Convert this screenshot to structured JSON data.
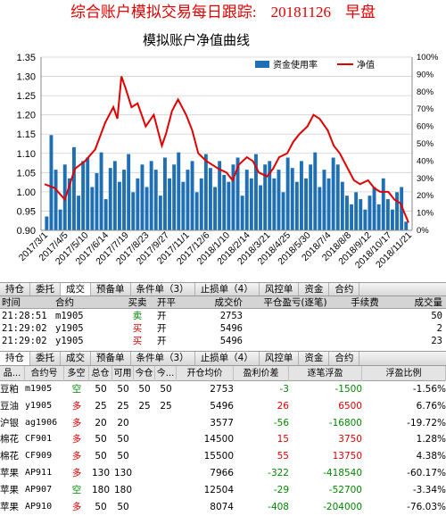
{
  "header": {
    "title": "综合账户模拟交易每日跟踪:",
    "date": "20181126",
    "session": "早盘"
  },
  "chart_data": {
    "type": "bar+line",
    "title": "模拟账户净值曲线",
    "legend": [
      "资金使用率",
      "净值"
    ],
    "legend_placement": "top-right",
    "y_left_ticks": [
      "1.35",
      "1.30",
      "1.25",
      "1.20",
      "1.15",
      "1.10",
      "1.05",
      "1.00",
      "0.95",
      "0.90"
    ],
    "y_left_range": [
      0.9,
      1.35
    ],
    "y_right_ticks": [
      "100%",
      "90%",
      "80%",
      "70%",
      "60%",
      "50%",
      "40%",
      "30%",
      "20%",
      "10%",
      "0%"
    ],
    "y_right_range": [
      0,
      100
    ],
    "x_labels": [
      "2017/3/1",
      "2017/4/5",
      "2017/5/10",
      "2017/6/14",
      "2017/7/19",
      "2017/8/23",
      "2017/9/27",
      "2017/11/1",
      "2017/12/6",
      "2018/1/10",
      "2018/2/14",
      "2018/3/21",
      "2018/4/25",
      "2018/5/30",
      "2018/7/4",
      "2018/8/8",
      "2018/9/12",
      "2018/10/17",
      "2018/11/21"
    ],
    "line_series": {
      "name": "净值",
      "color": "#e00000",
      "points": [
        [
          0,
          1.02
        ],
        [
          0.5,
          1.01
        ],
        [
          1,
          0.98
        ],
        [
          1.5,
          1.06
        ],
        [
          2,
          1.08
        ],
        [
          2.5,
          1.11
        ],
        [
          3,
          1.18
        ],
        [
          3.4,
          1.22
        ],
        [
          3.6,
          1.19
        ],
        [
          3.8,
          1.3
        ],
        [
          4,
          1.27
        ],
        [
          4.3,
          1.22
        ],
        [
          4.6,
          1.23
        ],
        [
          5,
          1.17
        ],
        [
          5.4,
          1.2
        ],
        [
          5.8,
          1.12
        ],
        [
          6,
          1.15
        ],
        [
          6.3,
          1.21
        ],
        [
          6.6,
          1.24
        ],
        [
          7,
          1.2
        ],
        [
          7.3,
          1.16
        ],
        [
          7.6,
          1.1
        ],
        [
          8,
          1.08
        ],
        [
          8.3,
          1.07
        ],
        [
          8.6,
          1.06
        ],
        [
          9,
          1.05
        ],
        [
          9.3,
          1.03
        ],
        [
          9.6,
          1.07
        ],
        [
          10,
          1.09
        ],
        [
          10.3,
          1.08
        ],
        [
          10.6,
          1.05
        ],
        [
          11,
          1.04
        ],
        [
          11.3,
          1.06
        ],
        [
          11.6,
          1.09
        ],
        [
          12,
          1.1
        ],
        [
          12.3,
          1.13
        ],
        [
          12.6,
          1.15
        ],
        [
          13,
          1.17
        ],
        [
          13.3,
          1.2
        ],
        [
          13.6,
          1.19
        ],
        [
          14,
          1.16
        ],
        [
          14.3,
          1.12
        ],
        [
          14.6,
          1.1
        ],
        [
          15,
          1.06
        ],
        [
          15.3,
          1.03
        ],
        [
          15.6,
          1.02
        ],
        [
          16,
          1.03
        ],
        [
          16.3,
          1.01
        ],
        [
          16.6,
          1.0
        ],
        [
          17,
          1.0
        ],
        [
          17.3,
          0.98
        ],
        [
          17.6,
          0.97
        ],
        [
          18,
          0.92
        ]
      ]
    },
    "bar_series": {
      "name": "资金使用率",
      "color": "#1f6fb5",
      "values": [
        8,
        55,
        35,
        12,
        38,
        30,
        48,
        20,
        40,
        42,
        25,
        33,
        45,
        18,
        36,
        40,
        28,
        35,
        44,
        22,
        30,
        38,
        25,
        40,
        35,
        20,
        42,
        30,
        38,
        45,
        28,
        35,
        40,
        22,
        30,
        44,
        36,
        25,
        40,
        32,
        28,
        38,
        42,
        20,
        35,
        30,
        44,
        26,
        38,
        40,
        30,
        35,
        22,
        42,
        36,
        28,
        40,
        30,
        38,
        45,
        25,
        35,
        30,
        42,
        38,
        28,
        20,
        15,
        22,
        18,
        12,
        20,
        25,
        15,
        30,
        18,
        12,
        22,
        25,
        5
      ]
    }
  },
  "orders_tabs": [
    "持仓",
    "委托",
    "成交",
    "预备单",
    "条件单（3）",
    "止损单（4）",
    "风控单",
    "资金",
    "合约"
  ],
  "orders_columns": [
    "时间",
    "合约",
    "买卖",
    "开平",
    "成交价",
    "平仓盈亏(逐笔)",
    "手续费",
    "成交量"
  ],
  "orders_rows": [
    {
      "time": "21:28:51",
      "contract": "m1905",
      "side": "卖",
      "open_close": "开",
      "price": "2753",
      "pnl": "",
      "fee": "",
      "qty": "50"
    },
    {
      "time": "21:29:02",
      "contract": "y1905",
      "side": "买",
      "open_close": "开",
      "price": "5496",
      "pnl": "",
      "fee": "",
      "qty": "2"
    },
    {
      "time": "21:29:02",
      "contract": "y1905",
      "side": "买",
      "open_close": "开",
      "price": "5496",
      "pnl": "",
      "fee": "",
      "qty": "23"
    }
  ],
  "positions_tabs": [
    "持仓",
    "委托",
    "成交",
    "预备单",
    "条件单（3）",
    "止损单（4）",
    "风控单",
    "资金",
    "合约"
  ],
  "positions_columns": [
    "品...",
    "合约号",
    "多空",
    "总仓",
    "可用",
    "今仓",
    "今...",
    "开仓均价",
    "盈利价差",
    "逐笔浮盈",
    "浮盈比例"
  ],
  "positions_rows": [
    {
      "product": "豆粕",
      "contract": "m1905",
      "dir": "空",
      "total": "50",
      "avail": "50",
      "today": "50",
      "today2": "50",
      "avg": "2753",
      "spread": "-3",
      "float": "-1500",
      "ratio": "-1.56%"
    },
    {
      "product": "豆油",
      "contract": "y1905",
      "dir": "多",
      "total": "25",
      "avail": "25",
      "today": "25",
      "today2": "25",
      "avg": "5496",
      "spread": "26",
      "float": "6500",
      "ratio": "6.76%"
    },
    {
      "product": "沪银",
      "contract": "ag1906",
      "dir": "多",
      "total": "20",
      "avail": "20",
      "today": "",
      "today2": "",
      "avg": "3577",
      "spread": "-56",
      "float": "-16800",
      "ratio": "-19.72%"
    },
    {
      "product": "棉花",
      "contract": "CF901",
      "dir": "多",
      "total": "50",
      "avail": "50",
      "today": "",
      "today2": "",
      "avg": "14500",
      "spread": "15",
      "float": "3750",
      "ratio": "1.28%"
    },
    {
      "product": "棉花",
      "contract": "CF909",
      "dir": "多",
      "total": "50",
      "avail": "50",
      "today": "",
      "today2": "",
      "avg": "15500",
      "spread": "55",
      "float": "13750",
      "ratio": "4.38%"
    },
    {
      "product": "苹果",
      "contract": "AP911",
      "dir": "多",
      "total": "130",
      "avail": "130",
      "today": "",
      "today2": "",
      "avg": "7966",
      "spread": "-322",
      "float": "-418540",
      "ratio": "-60.17%"
    },
    {
      "product": "苹果",
      "contract": "AP907",
      "dir": "空",
      "total": "180",
      "avail": "180",
      "today": "",
      "today2": "",
      "avg": "12504",
      "spread": "-29",
      "float": "-52700",
      "ratio": "-3.34%"
    },
    {
      "product": "苹果",
      "contract": "AP910",
      "dir": "多",
      "total": "50",
      "avail": "50",
      "today": "",
      "today2": "",
      "avg": "8074",
      "spread": "-408",
      "float": "-204000",
      "ratio": "-76.03%"
    }
  ]
}
